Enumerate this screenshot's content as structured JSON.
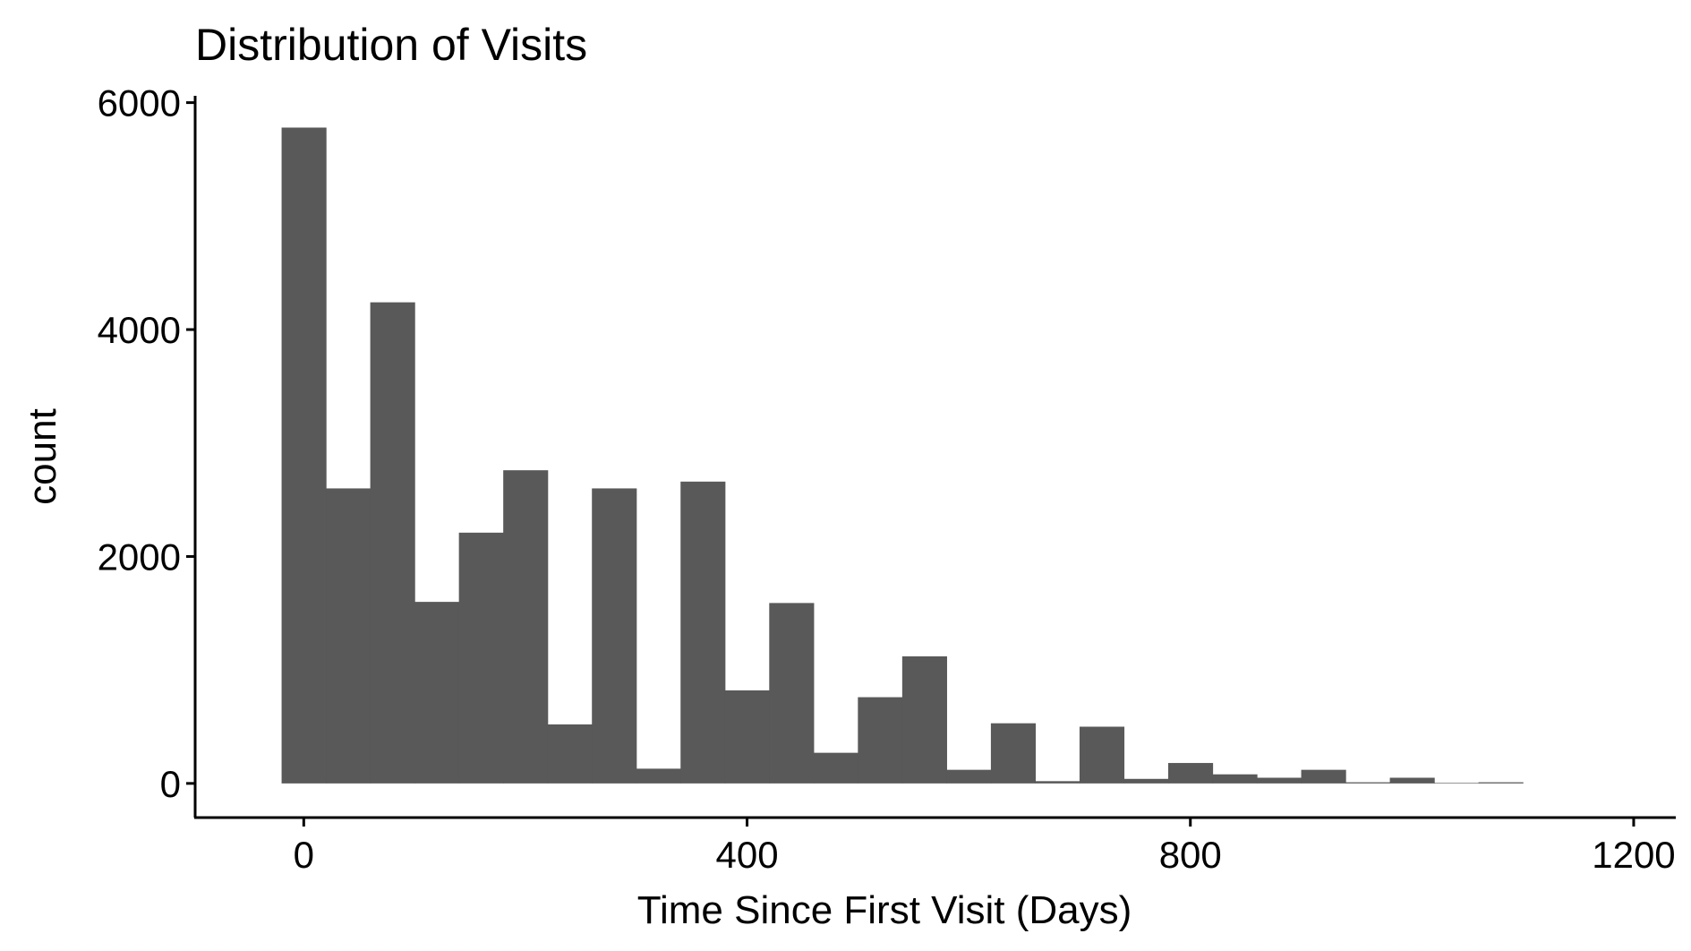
{
  "chart_data": {
    "type": "bar",
    "title": "Distribution of Visits",
    "xlabel": "Time Since First Visit (Days)",
    "ylabel": "count",
    "bin_width": 40,
    "bins": [
      {
        "x_start": -20,
        "x_end": 20,
        "count": 5780
      },
      {
        "x_start": 20,
        "x_end": 60,
        "count": 2600
      },
      {
        "x_start": 60,
        "x_end": 100,
        "count": 4240
      },
      {
        "x_start": 100,
        "x_end": 140,
        "count": 1600
      },
      {
        "x_start": 140,
        "x_end": 180,
        "count": 2210
      },
      {
        "x_start": 180,
        "x_end": 220,
        "count": 2760
      },
      {
        "x_start": 220,
        "x_end": 260,
        "count": 520
      },
      {
        "x_start": 260,
        "x_end": 300,
        "count": 2600
      },
      {
        "x_start": 300,
        "x_end": 340,
        "count": 130
      },
      {
        "x_start": 340,
        "x_end": 380,
        "count": 2660
      },
      {
        "x_start": 380,
        "x_end": 420,
        "count": 820
      },
      {
        "x_start": 420,
        "x_end": 460,
        "count": 1590
      },
      {
        "x_start": 460,
        "x_end": 500,
        "count": 270
      },
      {
        "x_start": 500,
        "x_end": 540,
        "count": 760
      },
      {
        "x_start": 540,
        "x_end": 580,
        "count": 1120
      },
      {
        "x_start": 580,
        "x_end": 620,
        "count": 120
      },
      {
        "x_start": 620,
        "x_end": 660,
        "count": 530
      },
      {
        "x_start": 660,
        "x_end": 700,
        "count": 20
      },
      {
        "x_start": 700,
        "x_end": 740,
        "count": 500
      },
      {
        "x_start": 740,
        "x_end": 780,
        "count": 40
      },
      {
        "x_start": 780,
        "x_end": 820,
        "count": 180
      },
      {
        "x_start": 820,
        "x_end": 860,
        "count": 80
      },
      {
        "x_start": 860,
        "x_end": 900,
        "count": 50
      },
      {
        "x_start": 900,
        "x_end": 940,
        "count": 120
      },
      {
        "x_start": 940,
        "x_end": 980,
        "count": 10
      },
      {
        "x_start": 980,
        "x_end": 1020,
        "count": 50
      },
      {
        "x_start": 1020,
        "x_end": 1060,
        "count": 5
      },
      {
        "x_start": 1060,
        "x_end": 1100,
        "count": 10
      }
    ],
    "x_ticks": [
      0,
      400,
      800,
      1200
    ],
    "x_tick_labels": [
      "0",
      "400",
      "800",
      "1200"
    ],
    "y_ticks": [
      0,
      2000,
      4000,
      6000
    ],
    "y_tick_labels": [
      "0",
      "2000",
      "4000",
      "6000"
    ],
    "xlim": [
      -98,
      1238
    ],
    "ylim": [
      -301,
      6060
    ],
    "grid": false,
    "legend": "none",
    "bar_color": "#595959"
  }
}
